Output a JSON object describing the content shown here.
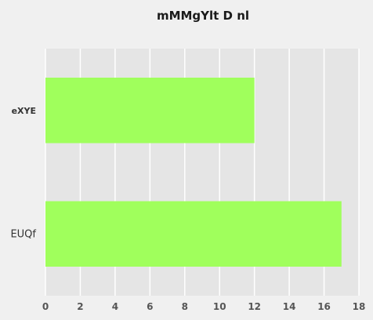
{
  "chart_data": {
    "type": "bar",
    "orientation": "horizontal",
    "title": "mMMgYlt D  nl",
    "xlabel": "",
    "ylabel": "",
    "categories": [
      "eXYE",
      "EUQf"
    ],
    "values": [
      12,
      17
    ],
    "xlim": [
      0,
      18
    ],
    "xticks": [
      0,
      2,
      4,
      6,
      8,
      10,
      12,
      14,
      16,
      18
    ],
    "grid": true,
    "bar_color": "#a0ff5c",
    "plot_background": "#e5e5e5",
    "grid_color": "#ffffff"
  }
}
